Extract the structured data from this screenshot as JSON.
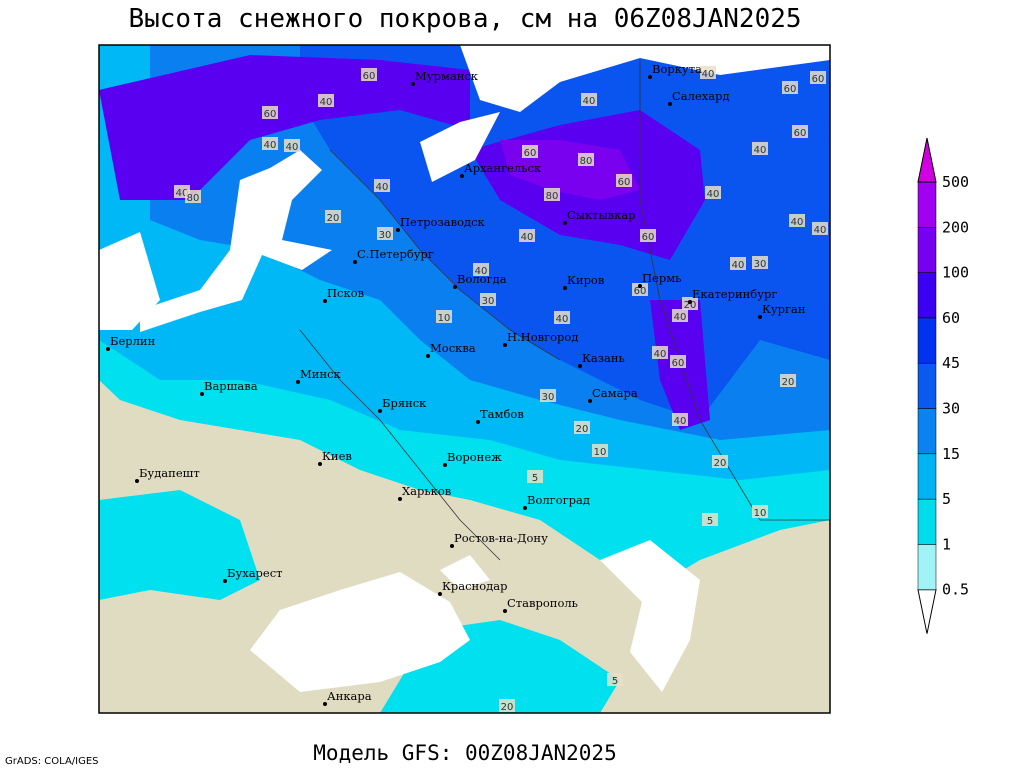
{
  "title": "Высота снежного покрова, см на 06Z08JAN2025",
  "footer": "Модель GFS: 00Z08JAN2025",
  "credit": "GrADS: COLA/IGES",
  "colorbar": {
    "levels": [
      0.5,
      1,
      5,
      15,
      30,
      45,
      60,
      100,
      200,
      500
    ],
    "colors": [
      "#ffffff",
      "#a0f4f8",
      "#00dcec",
      "#00b4f4",
      "#0a82f0",
      "#0a5af0",
      "#0032f0",
      "#3c00f0",
      "#7800f0",
      "#a000f0",
      "#d000e0"
    ]
  },
  "cities": [
    "Мурманск",
    "Архангельск",
    "Воркута",
    "Салехард",
    "Петрозаводск",
    "Сыктывкар",
    "С.Петербург",
    "Вологда",
    "Киров",
    "Пермь",
    "Екатеринбург",
    "Курган",
    "Псков",
    "Н.Новгород",
    "Берлин",
    "Москва",
    "Казань",
    "Варшава",
    "Минск",
    "Самара",
    "Брянск",
    "Тамбов",
    "Киев",
    "Воронеж",
    "Будапешт",
    "Харьков",
    "Волгоград",
    "Ростов-на-Дону",
    "Бухарест",
    "Краснодар",
    "Ставрополь",
    "Анкара"
  ],
  "contour_labels": [
    60,
    40,
    60,
    40,
    40,
    40,
    80,
    20,
    30,
    40,
    40,
    60,
    80,
    60,
    80,
    40,
    60,
    40,
    30,
    10,
    40,
    60,
    20,
    40,
    40,
    60,
    20,
    30,
    20,
    10,
    20,
    5,
    5,
    10,
    5,
    20,
    40,
    60,
    60,
    40,
    60,
    40,
    30,
    40,
    40,
    40,
    40
  ]
}
